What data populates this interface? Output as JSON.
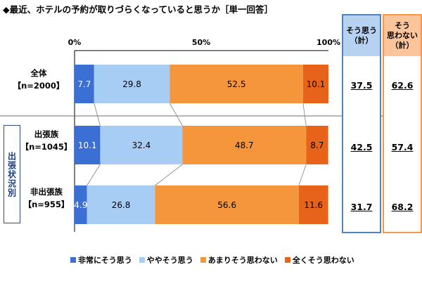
{
  "title": "◆最近、ホテルの予約が取りづらくなっていると思うか［単一回答］",
  "chart_data": {
    "type": "bar",
    "orientation": "horizontal",
    "stacked": "percent",
    "xlim": [
      0,
      100
    ],
    "x_ticks": [
      "0%",
      "50%",
      "100%"
    ],
    "categories": [
      {
        "label": "全体",
        "n": "【n=2000】"
      },
      {
        "label": "出張族",
        "n": "【n=1045】"
      },
      {
        "label": "非出張族",
        "n": "【n=955】"
      }
    ],
    "series": [
      {
        "name": "非常にそう思う",
        "color": "#3b6fd4",
        "values": [
          7.7,
          10.1,
          4.9
        ],
        "value_labels": [
          "7.7",
          "10.1",
          "4.9"
        ]
      },
      {
        "name": "ややそう思う",
        "color": "#a8cdf5",
        "values": [
          29.8,
          32.4,
          26.8
        ],
        "value_labels": [
          "29.8",
          "32.4",
          "26.8"
        ]
      },
      {
        "name": "あまりそう思わない",
        "color": "#f5963c",
        "values": [
          52.5,
          48.7,
          56.6
        ],
        "value_labels": [
          "52.5",
          "48.7",
          "56.6"
        ]
      },
      {
        "name": "全くそう思わない",
        "color": "#e8631a",
        "values": [
          10.1,
          8.7,
          11.6
        ],
        "value_labels": [
          "10.1",
          "8.7",
          "11.6"
        ]
      }
    ],
    "group_label": "出張状況別",
    "legend_position": "bottom"
  },
  "summary": {
    "agree": {
      "header": [
        "そう思う",
        "（計）"
      ],
      "values": [
        "37.5",
        "42.5",
        "31.7"
      ]
    },
    "disagree": {
      "header": [
        "そう",
        "思わない",
        "（計）"
      ],
      "values": [
        "62.6",
        "57.4",
        "68.2"
      ]
    }
  }
}
